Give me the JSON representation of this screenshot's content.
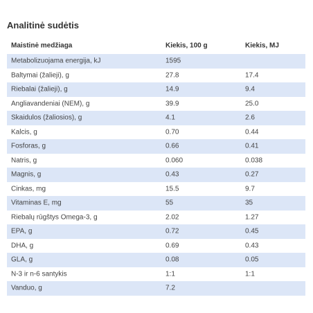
{
  "title": "Analitinė sudėtis",
  "table": {
    "headers": [
      "Maistinė medžiaga",
      "Kiekis, 100 g",
      "Kiekis, MJ"
    ],
    "rows": [
      [
        "Metabolizuojama energija, kJ",
        "1595",
        ""
      ],
      [
        "Baltymai (žalieji), g",
        "27.8",
        "17.4"
      ],
      [
        "Riebalai (žalieji), g",
        "14.9",
        "9.4"
      ],
      [
        "Angliavandeniai (NEM), g",
        "39.9",
        "25.0"
      ],
      [
        "Skaidulos (žaliosios),  g",
        "4.1",
        "2.6"
      ],
      [
        "Kalcis, g",
        "0.70",
        "0.44"
      ],
      [
        "Fosforas, g",
        "0.66",
        "0.41"
      ],
      [
        "Natris, g",
        "0.060",
        "0.038"
      ],
      [
        "Magnis, g",
        "0.43",
        "0.27"
      ],
      [
        "Cinkas, mg",
        "15.5",
        "9.7"
      ],
      [
        "Vitaminas E, mg",
        "55",
        "35"
      ],
      [
        "Riebalų rūgštys Omega-3, g",
        "2.02",
        "1.27"
      ],
      [
        "EPA, g",
        "0.72",
        "0.45"
      ],
      [
        "DHA, g",
        "0.69",
        "0.43"
      ],
      [
        "GLA, g",
        "0.08",
        "0.05"
      ],
      [
        "N-3 ir n-6 santykis",
        "1:1",
        "1:1"
      ],
      [
        "Vanduo, g",
        "7.2",
        ""
      ]
    ]
  },
  "colors": {
    "stripe": "#dce6f7",
    "text": "#444444",
    "heading": "#333333"
  }
}
